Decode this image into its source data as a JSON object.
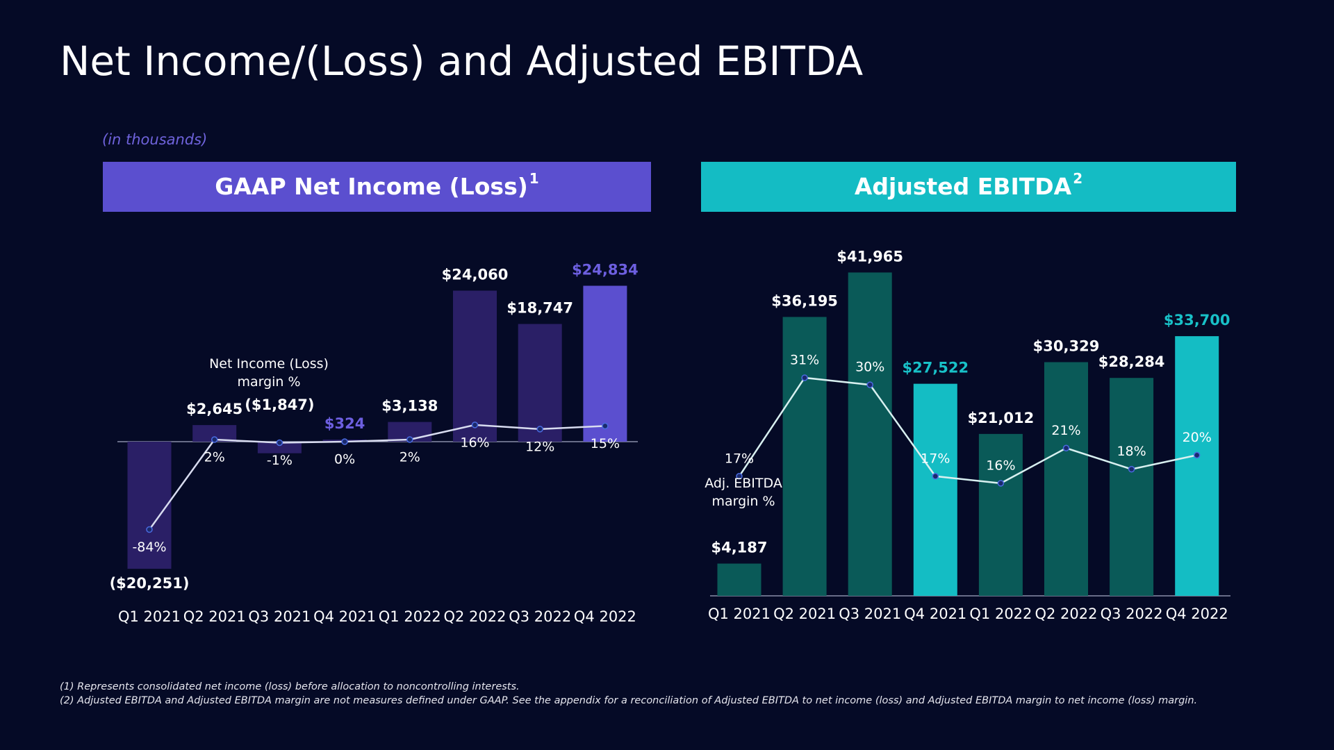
{
  "title": "Net Income/(Loss) and Adjusted EBITDA",
  "units_note": "(in thousands)",
  "footnotes": [
    "(1) Represents consolidated net income (loss) before allocation to noncontrolling interests.",
    "(2) Adjusted EBITDA and Adjusted EBITDA margin are not measures defined under GAAP. See the appendix for a reconciliation of Adjusted EBITDA to net income (loss) and Adjusted EBITDA margin to net income (loss) margin."
  ],
  "chart_data": [
    {
      "type": "bar",
      "title": "GAAP Net Income (Loss)",
      "title_marker": "1",
      "header_color": "#5b4fcf",
      "categories": [
        "Q1 2021",
        "Q2 2021",
        "Q3 2021",
        "Q4 2021",
        "Q1 2022",
        "Q2 2022",
        "Q3 2022",
        "Q4 2022"
      ],
      "ylim": [
        -25000,
        25000
      ],
      "y2lim": [
        -150,
        150
      ],
      "series": [
        {
          "values": [
            -20251,
            2645,
            -1847,
            324,
            3138,
            24060,
            18747,
            24834
          ],
          "value_labels": [
            "($20,251)",
            "$2,645",
            "($1,847)",
            "$324",
            "$3,138",
            "$24,060",
            "$18,747",
            "$24,834"
          ],
          "colors": [
            "#2a1f66",
            "#2a1f66",
            "#2a1f66",
            "#2a1f66",
            "#2a1f66",
            "#2a1f66",
            "#2a1f66",
            "#5b4fcf"
          ],
          "label_colors": [
            "#ffffff",
            "#ffffff",
            "#ffffff",
            "#6d5fe0",
            "#ffffff",
            "#ffffff",
            "#ffffff",
            "#6d5fe0"
          ]
        },
        {
          "name": "Net Income (Loss) margin %",
          "type": "line",
          "axis": "y2",
          "color": "#d8dcf0",
          "values": [
            -84,
            2,
            -1,
            0,
            2,
            16,
            12,
            15
          ],
          "value_labels": [
            "-84%",
            "2%",
            "-1%",
            "0%",
            "2%",
            "16%",
            "12%",
            "15%"
          ]
        }
      ]
    },
    {
      "type": "bar",
      "title": "Adjusted EBITDA",
      "title_marker": "2",
      "header_color": "#14bcc4",
      "categories": [
        "Q1 2021",
        "Q2 2021",
        "Q3 2021",
        "Q4 2021",
        "Q1 2022",
        "Q2 2022",
        "Q3 2022",
        "Q4 2022"
      ],
      "ylim": [
        0,
        42000
      ],
      "y2lim": [
        0,
        46
      ],
      "series": [
        {
          "values": [
            4187,
            36195,
            41965,
            27522,
            21012,
            30329,
            28284,
            33700
          ],
          "value_labels": [
            "$4,187",
            "$36,195",
            "$41,965",
            "$27,522",
            "$21,012",
            "$30,329",
            "$28,284",
            "$33,700"
          ],
          "colors": [
            "#0a5a58",
            "#0a5a58",
            "#0a5a58",
            "#14bdc4",
            "#0a5a58",
            "#0a5a58",
            "#0a5a58",
            "#14bdc4"
          ],
          "label_colors": [
            "#ffffff",
            "#ffffff",
            "#ffffff",
            "#18c1c8",
            "#ffffff",
            "#ffffff",
            "#ffffff",
            "#18c1c8"
          ]
        },
        {
          "name": "Adj. EBITDA margin %",
          "type": "line",
          "axis": "y2",
          "color": "#d8f0f0",
          "values": [
            17,
            31,
            30,
            17,
            16,
            21,
            18,
            20
          ],
          "value_labels": [
            "17%",
            "31%",
            "30%",
            "17%",
            "16%",
            "21%",
            "18%",
            "20%"
          ]
        }
      ]
    }
  ]
}
